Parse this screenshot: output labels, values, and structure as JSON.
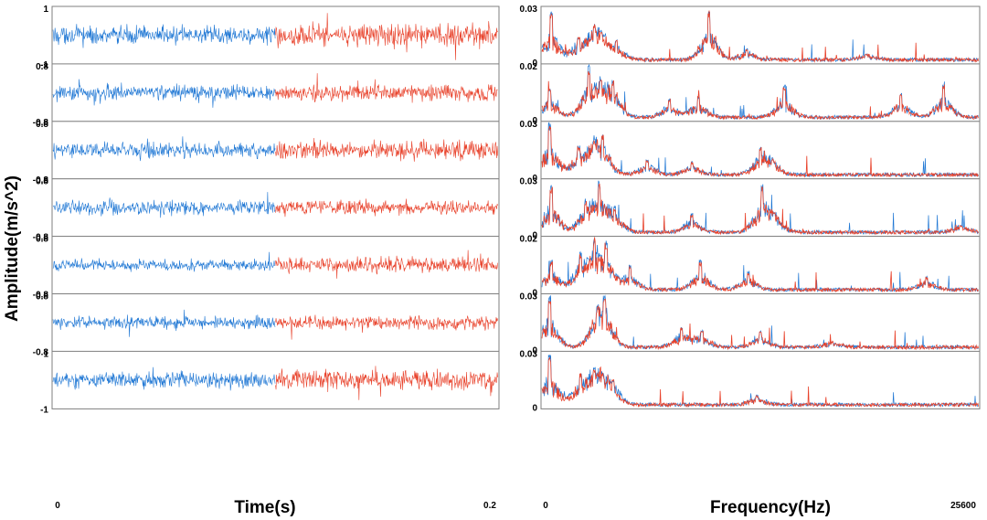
{
  "chart_data": {
    "type": "line",
    "ylabel": "Amplitude(m/s^2)",
    "colors": {
      "first_half": "#1f77d4",
      "second_half": "#e8412a",
      "frame": "#7f7f7f"
    },
    "time_domain": {
      "xlabel": "Time(s)",
      "xlim": [
        0,
        0.2
      ],
      "xticks": [
        "0",
        "0.2"
      ],
      "split_at": 0.1,
      "rows": [
        {
          "ylim": [
            -1,
            1
          ],
          "yticks": [
            "1",
            "-1"
          ],
          "amp_first": 0.45,
          "amp_second": 0.55
        },
        {
          "ylim": [
            -0.8,
            0.8
          ],
          "yticks": [
            "0.8",
            "-0.8"
          ],
          "amp_first": 0.4,
          "amp_second": 0.4
        },
        {
          "ylim": [
            -0.8,
            0.8
          ],
          "yticks": [
            "0.8",
            "-0.8"
          ],
          "amp_first": 0.38,
          "amp_second": 0.45
        },
        {
          "ylim": [
            -0.8,
            0.8
          ],
          "yticks": [
            "0.8",
            "-0.8"
          ],
          "amp_first": 0.35,
          "amp_second": 0.35
        },
        {
          "ylim": [
            -0.8,
            0.8
          ],
          "yticks": [
            "0.8",
            "-0.8"
          ],
          "amp_first": 0.28,
          "amp_second": 0.38
        },
        {
          "ylim": [
            -0.8,
            0.8
          ],
          "yticks": [
            "0.8",
            "-0.8"
          ],
          "amp_first": 0.3,
          "amp_second": 0.32
        },
        {
          "ylim": [
            -1,
            1
          ],
          "yticks": [
            "1",
            "-1"
          ],
          "amp_first": 0.4,
          "amp_second": 0.5
        }
      ]
    },
    "frequency_domain": {
      "xlabel": "Frequency(Hz)",
      "xlim": [
        0,
        25600
      ],
      "xticks": [
        "0",
        "25600"
      ],
      "rows": [
        {
          "ylim": [
            0,
            0.03
          ],
          "yticks": [
            "0.03",
            "0"
          ],
          "peaks": [
            [
              600,
              0.028
            ],
            [
              2200,
              0.015
            ],
            [
              3100,
              0.022
            ],
            [
              3500,
              0.018
            ],
            [
              4400,
              0.013
            ],
            [
              9800,
              0.03
            ],
            [
              12000,
              0.008
            ],
            [
              19000,
              0.005
            ]
          ]
        },
        {
          "ylim": [
            0,
            0.02
          ],
          "yticks": [
            "0.02",
            "0"
          ],
          "peaks": [
            [
              500,
              0.012
            ],
            [
              2800,
              0.02
            ],
            [
              3500,
              0.016
            ],
            [
              4200,
              0.015
            ],
            [
              7500,
              0.008
            ],
            [
              9200,
              0.009
            ],
            [
              14200,
              0.013
            ],
            [
              21000,
              0.01
            ],
            [
              23500,
              0.014
            ]
          ]
        },
        {
          "ylim": [
            0,
            0.03
          ],
          "yticks": [
            "0.03",
            "0"
          ],
          "peaks": [
            [
              500,
              0.03
            ],
            [
              2200,
              0.018
            ],
            [
              3100,
              0.022
            ],
            [
              3600,
              0.025
            ],
            [
              6200,
              0.01
            ],
            [
              8800,
              0.009
            ],
            [
              12800,
              0.018
            ],
            [
              13500,
              0.011
            ]
          ]
        },
        {
          "ylim": [
            0,
            0.03
          ],
          "yticks": [
            "0.03",
            "0"
          ],
          "peaks": [
            [
              600,
              0.028
            ],
            [
              2600,
              0.02
            ],
            [
              3400,
              0.03
            ],
            [
              4300,
              0.016
            ],
            [
              8800,
              0.012
            ],
            [
              12900,
              0.028
            ],
            [
              13600,
              0.014
            ],
            [
              24500,
              0.006
            ]
          ]
        },
        {
          "ylim": [
            0,
            0.02
          ],
          "yticks": [
            "0.02",
            "0"
          ],
          "peaks": [
            [
              600,
              0.012
            ],
            [
              2300,
              0.015
            ],
            [
              3100,
              0.02
            ],
            [
              3800,
              0.019
            ],
            [
              5200,
              0.01
            ],
            [
              9300,
              0.012
            ],
            [
              12100,
              0.008
            ],
            [
              22500,
              0.006
            ]
          ]
        },
        {
          "ylim": [
            0,
            0.03
          ],
          "yticks": [
            "0.03",
            "0"
          ],
          "peaks": [
            [
              500,
              0.03
            ],
            [
              3300,
              0.025
            ],
            [
              3700,
              0.03
            ],
            [
              8200,
              0.013
            ],
            [
              9400,
              0.011
            ],
            [
              12800,
              0.011
            ],
            [
              17000,
              0.005
            ]
          ]
        },
        {
          "ylim": [
            0,
            0.03
          ],
          "yticks": [
            "0.03",
            "0"
          ],
          "peaks": [
            [
              500,
              0.03
            ],
            [
              2300,
              0.02
            ],
            [
              3100,
              0.023
            ],
            [
              3600,
              0.02
            ],
            [
              4200,
              0.016
            ],
            [
              12600,
              0.007
            ]
          ]
        }
      ]
    }
  }
}
